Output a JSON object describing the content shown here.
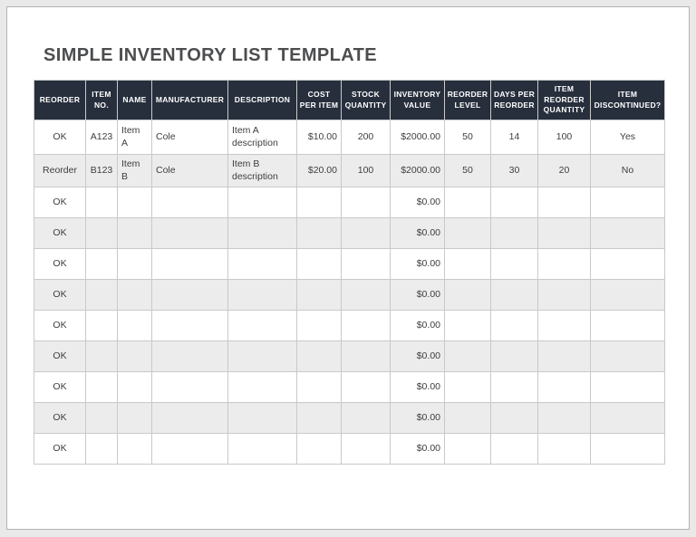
{
  "title": "SIMPLE INVENTORY LIST TEMPLATE",
  "table": {
    "columns": [
      {
        "key": "reorder",
        "label": "REORDER"
      },
      {
        "key": "item_no",
        "label": "ITEM NO."
      },
      {
        "key": "name",
        "label": "NAME"
      },
      {
        "key": "manufacturer",
        "label": "MANUFACTURER"
      },
      {
        "key": "description",
        "label": "DESCRIPTION"
      },
      {
        "key": "cost_per_item",
        "label": "COST PER ITEM"
      },
      {
        "key": "stock_quantity",
        "label": "STOCK QUANTITY"
      },
      {
        "key": "inventory_value",
        "label": "INVENTORY VALUE"
      },
      {
        "key": "reorder_level",
        "label": "REORDER LEVEL"
      },
      {
        "key": "days_per_reorder",
        "label": "DAYS PER REORDER"
      },
      {
        "key": "item_reorder_quantity",
        "label": "ITEM REORDER QUANTITY"
      },
      {
        "key": "item_discontinued",
        "label": "ITEM DISCONTINUED?"
      }
    ],
    "rows": [
      [
        "OK",
        "A123",
        "Item A",
        "Cole",
        "Item A description",
        "$10.00",
        "200",
        "$2000.00",
        "50",
        "14",
        "100",
        "Yes"
      ],
      [
        "Reorder",
        "B123",
        "Item B",
        "Cole",
        "Item B description",
        "$20.00",
        "100",
        "$2000.00",
        "50",
        "30",
        "20",
        "No"
      ],
      [
        "OK",
        "",
        "",
        "",
        "",
        "",
        "",
        "$0.00",
        "",
        "",
        "",
        ""
      ],
      [
        "OK",
        "",
        "",
        "",
        "",
        "",
        "",
        "$0.00",
        "",
        "",
        "",
        ""
      ],
      [
        "OK",
        "",
        "",
        "",
        "",
        "",
        "",
        "$0.00",
        "",
        "",
        "",
        ""
      ],
      [
        "OK",
        "",
        "",
        "",
        "",
        "",
        "",
        "$0.00",
        "",
        "",
        "",
        ""
      ],
      [
        "OK",
        "",
        "",
        "",
        "",
        "",
        "",
        "$0.00",
        "",
        "",
        "",
        ""
      ],
      [
        "OK",
        "",
        "",
        "",
        "",
        "",
        "",
        "$0.00",
        "",
        "",
        "",
        ""
      ],
      [
        "OK",
        "",
        "",
        "",
        "",
        "",
        "",
        "$0.00",
        "",
        "",
        "",
        ""
      ],
      [
        "OK",
        "",
        "",
        "",
        "",
        "",
        "",
        "$0.00",
        "",
        "",
        "",
        ""
      ],
      [
        "OK",
        "",
        "",
        "",
        "",
        "",
        "",
        "$0.00",
        "",
        "",
        "",
        ""
      ]
    ]
  },
  "colors": {
    "header_bg": "#272f3d",
    "header_text": "#ffffff",
    "row_alt_bg": "#ececec",
    "grid_border": "#c9c9c9",
    "title_text": "#4c4d4f",
    "body_text": "#3e3e3e",
    "page_background": "#e9e9e9",
    "page_border": "#b3b3b3"
  }
}
